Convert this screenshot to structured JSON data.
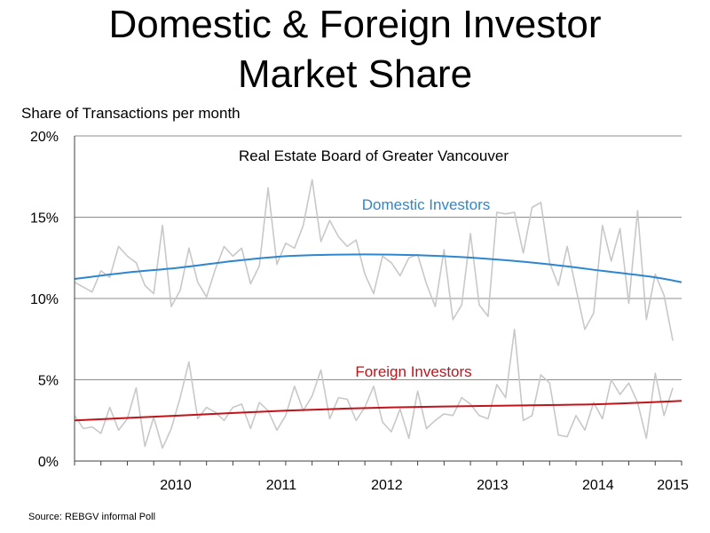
{
  "header": {
    "title_line1": "Domestic & Foreign Investor",
    "title_line2": "Market Share"
  },
  "footer": {
    "source": "Source: REBGV informal Poll"
  },
  "colors": {
    "domestic_trend": "#2e86d0",
    "foreign_trend": "#c0141c",
    "raw_series": "#c8c8c8",
    "grid": "#8c8c8c",
    "axis": "#404040"
  },
  "chart_data": {
    "type": "line",
    "title": "Domestic & Foreign Investor Market Share",
    "ylabel": "Share of Transactions per month",
    "xlabel": "",
    "annotation": "Real Estate Board of Greater Vancouver",
    "ylim": [
      0,
      20
    ],
    "y_ticks": [
      "0%",
      "5%",
      "10%",
      "15%",
      "20%"
    ],
    "x_range": [
      "2009-07",
      "2015-04"
    ],
    "x_ticks": [
      "2010",
      "2011",
      "2012",
      "2013",
      "2014",
      "2015"
    ],
    "grid": true,
    "series": [
      {
        "name": "Domestic Investors",
        "role": "trend",
        "color": "#2e86d0",
        "months": [
          "2009-07",
          "2010-01",
          "2010-07",
          "2011-01",
          "2011-07",
          "2012-01",
          "2012-07",
          "2013-01",
          "2013-07",
          "2014-01",
          "2014-07",
          "2015-01",
          "2015-04"
        ],
        "values": [
          11.2,
          11.6,
          11.9,
          12.3,
          12.6,
          12.7,
          12.7,
          12.6,
          12.4,
          12.1,
          11.7,
          11.3,
          11.0
        ]
      },
      {
        "name": "Foreign Investors",
        "role": "trend",
        "color": "#c0141c",
        "months": [
          "2009-07",
          "2010-07",
          "2011-07",
          "2012-07",
          "2013-07",
          "2014-07",
          "2015-04"
        ],
        "values": [
          2.5,
          2.8,
          3.1,
          3.3,
          3.4,
          3.5,
          3.7
        ]
      },
      {
        "role": "monthly",
        "color": "#c8c8c8",
        "start": "2009-07",
        "values": [
          11.0,
          10.7,
          10.4,
          11.7,
          11.3,
          13.2,
          12.6,
          12.2,
          10.8,
          10.3,
          14.5,
          9.5,
          10.5,
          13.1,
          11.0,
          10.1,
          11.8,
          13.2,
          12.6,
          13.1,
          10.9,
          12.0,
          16.8,
          12.1,
          13.4,
          13.1,
          14.5,
          17.3,
          13.5,
          14.8,
          13.8,
          13.2,
          13.6,
          11.5,
          10.3,
          12.6,
          12.2,
          11.4,
          12.5,
          12.7,
          10.9,
          9.5,
          13.0,
          8.7,
          9.6,
          14.0,
          9.6,
          8.9,
          15.3,
          15.2,
          15.3,
          12.8,
          15.6,
          15.9,
          12.2,
          10.8,
          13.2,
          10.6,
          8.1,
          9.1,
          14.5,
          12.3,
          14.3,
          9.7,
          15.4,
          8.7,
          11.5,
          10.2,
          7.4
        ]
      },
      {
        "role": "monthly",
        "color": "#c8c8c8",
        "start": "2009-07",
        "values": [
          2.8,
          2.0,
          2.1,
          1.7,
          3.3,
          1.9,
          2.6,
          4.5,
          0.9,
          2.7,
          0.8,
          2.0,
          3.9,
          6.1,
          2.6,
          3.3,
          3.0,
          2.5,
          3.3,
          3.5,
          2.0,
          3.6,
          3.1,
          1.9,
          2.8,
          4.6,
          3.1,
          4.0,
          5.6,
          2.6,
          3.9,
          3.8,
          2.5,
          3.3,
          4.6,
          2.4,
          1.8,
          3.2,
          1.4,
          4.3,
          2.0,
          2.5,
          2.9,
          2.8,
          3.9,
          3.5,
          2.8,
          2.6,
          4.7,
          3.9,
          8.1,
          2.5,
          2.8,
          5.3,
          4.8,
          1.6,
          1.5,
          2.8,
          1.9,
          3.6,
          2.6,
          5.0,
          4.1,
          4.8,
          3.6,
          1.4,
          5.4,
          2.8,
          4.5
        ]
      }
    ]
  }
}
